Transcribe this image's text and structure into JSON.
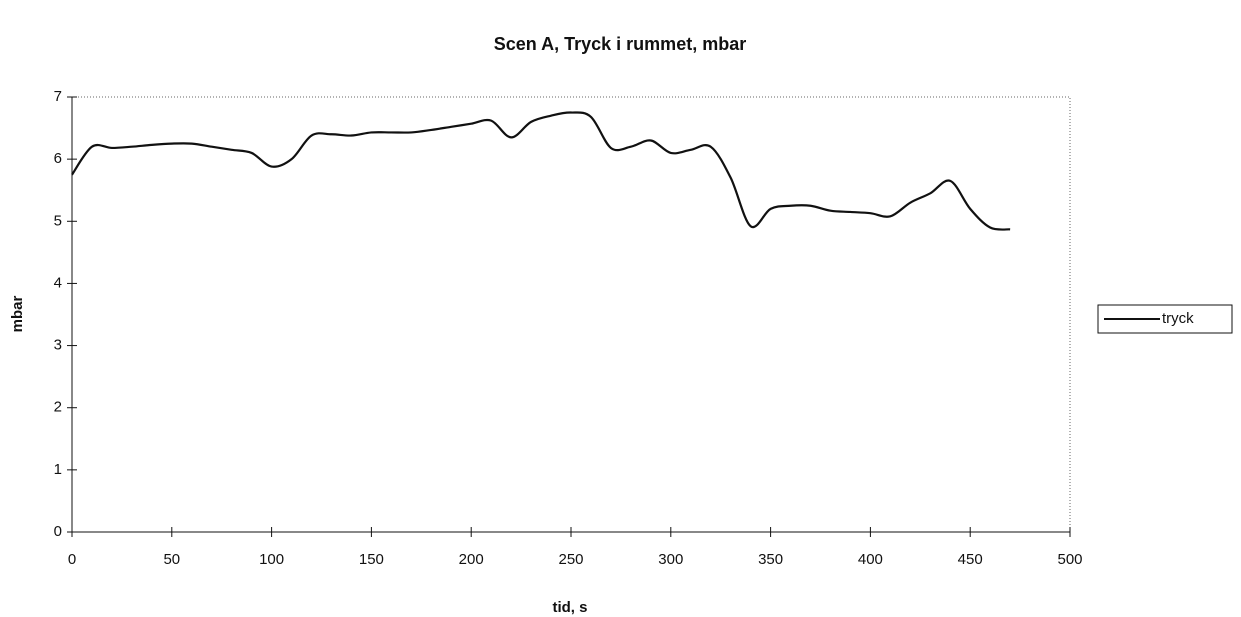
{
  "chart_data": {
    "type": "line",
    "title": "Scen A, Tryck i rummet, mbar",
    "x_label": "tid, s",
    "y_label": "mbar",
    "x": [
      0,
      10,
      20,
      30,
      40,
      50,
      60,
      70,
      80,
      90,
      100,
      110,
      120,
      130,
      140,
      150,
      160,
      170,
      180,
      190,
      200,
      210,
      220,
      230,
      240,
      250,
      260,
      270,
      280,
      290,
      300,
      310,
      320,
      330,
      340,
      350,
      360,
      370,
      380,
      390,
      400,
      410,
      420,
      430,
      440,
      450,
      460,
      470
    ],
    "series": [
      {
        "name": "tryck",
        "color": "#111111",
        "values": [
          5.75,
          6.2,
          6.18,
          6.2,
          6.23,
          6.25,
          6.25,
          6.2,
          6.15,
          6.1,
          5.88,
          6.0,
          6.38,
          6.4,
          6.38,
          6.43,
          6.43,
          6.43,
          6.47,
          6.52,
          6.57,
          6.62,
          6.35,
          6.6,
          6.7,
          6.75,
          6.68,
          6.18,
          6.2,
          6.3,
          6.1,
          6.15,
          6.2,
          5.7,
          4.92,
          5.2,
          5.25,
          5.25,
          5.17,
          5.15,
          5.13,
          5.08,
          5.3,
          5.45,
          5.65,
          5.2,
          4.9,
          4.87
        ]
      }
    ],
    "xlim": [
      0,
      500
    ],
    "xticks": [
      0,
      50,
      100,
      150,
      200,
      250,
      300,
      350,
      400,
      450,
      500
    ],
    "ylim": [
      0,
      7
    ],
    "yticks": [
      0,
      1,
      2,
      3,
      4,
      5,
      6,
      7
    ],
    "legend": "right"
  }
}
